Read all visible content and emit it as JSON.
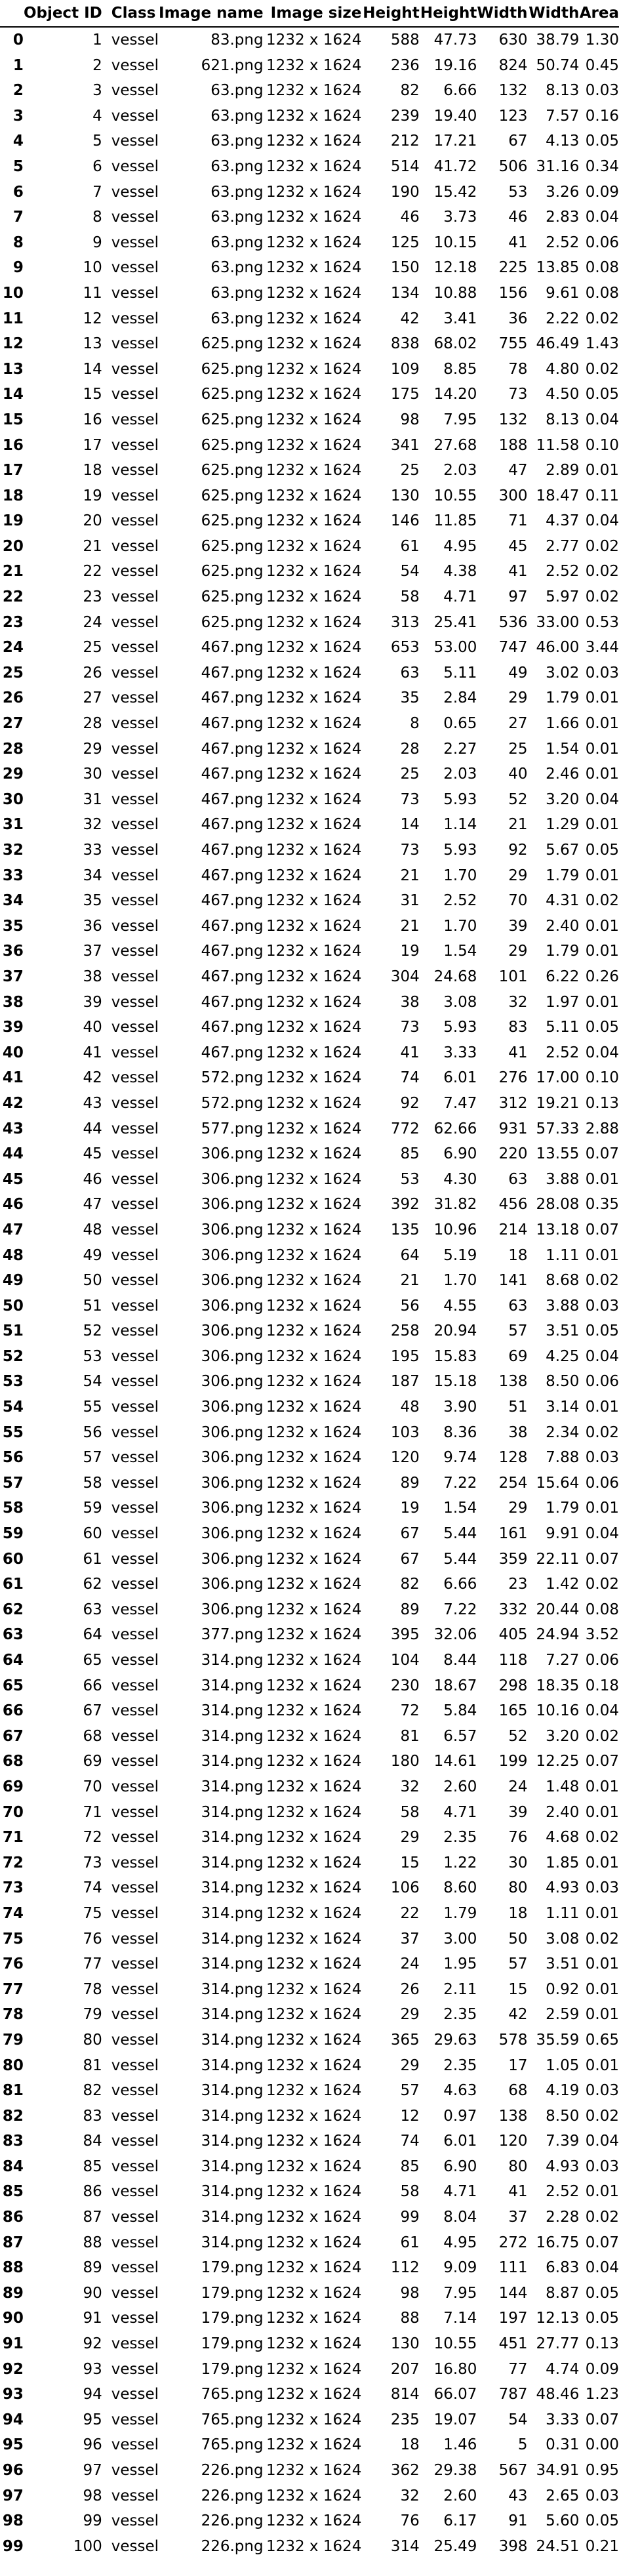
{
  "table": {
    "columns": [
      "",
      "Object ID",
      "Class",
      "Image name",
      "Image size",
      "Height",
      "Height",
      "Width",
      "Width",
      "Area"
    ],
    "rows": [
      [
        0,
        1,
        "vessel",
        "83.png",
        "1232 x 1624",
        "588",
        "47.73",
        "630",
        "38.79",
        "1.30"
      ],
      [
        1,
        2,
        "vessel",
        "621.png",
        "1232 x 1624",
        "236",
        "19.16",
        "824",
        "50.74",
        "0.45"
      ],
      [
        2,
        3,
        "vessel",
        "63.png",
        "1232 x 1624",
        "82",
        "6.66",
        "132",
        "8.13",
        "0.03"
      ],
      [
        3,
        4,
        "vessel",
        "63.png",
        "1232 x 1624",
        "239",
        "19.40",
        "123",
        "7.57",
        "0.16"
      ],
      [
        4,
        5,
        "vessel",
        "63.png",
        "1232 x 1624",
        "212",
        "17.21",
        "67",
        "4.13",
        "0.05"
      ],
      [
        5,
        6,
        "vessel",
        "63.png",
        "1232 x 1624",
        "514",
        "41.72",
        "506",
        "31.16",
        "0.34"
      ],
      [
        6,
        7,
        "vessel",
        "63.png",
        "1232 x 1624",
        "190",
        "15.42",
        "53",
        "3.26",
        "0.09"
      ],
      [
        7,
        8,
        "vessel",
        "63.png",
        "1232 x 1624",
        "46",
        "3.73",
        "46",
        "2.83",
        "0.04"
      ],
      [
        8,
        9,
        "vessel",
        "63.png",
        "1232 x 1624",
        "125",
        "10.15",
        "41",
        "2.52",
        "0.06"
      ],
      [
        9,
        10,
        "vessel",
        "63.png",
        "1232 x 1624",
        "150",
        "12.18",
        "225",
        "13.85",
        "0.08"
      ],
      [
        10,
        11,
        "vessel",
        "63.png",
        "1232 x 1624",
        "134",
        "10.88",
        "156",
        "9.61",
        "0.08"
      ],
      [
        11,
        12,
        "vessel",
        "63.png",
        "1232 x 1624",
        "42",
        "3.41",
        "36",
        "2.22",
        "0.02"
      ],
      [
        12,
        13,
        "vessel",
        "625.png",
        "1232 x 1624",
        "838",
        "68.02",
        "755",
        "46.49",
        "1.43"
      ],
      [
        13,
        14,
        "vessel",
        "625.png",
        "1232 x 1624",
        "109",
        "8.85",
        "78",
        "4.80",
        "0.02"
      ],
      [
        14,
        15,
        "vessel",
        "625.png",
        "1232 x 1624",
        "175",
        "14.20",
        "73",
        "4.50",
        "0.05"
      ],
      [
        15,
        16,
        "vessel",
        "625.png",
        "1232 x 1624",
        "98",
        "7.95",
        "132",
        "8.13",
        "0.04"
      ],
      [
        16,
        17,
        "vessel",
        "625.png",
        "1232 x 1624",
        "341",
        "27.68",
        "188",
        "11.58",
        "0.10"
      ],
      [
        17,
        18,
        "vessel",
        "625.png",
        "1232 x 1624",
        "25",
        "2.03",
        "47",
        "2.89",
        "0.01"
      ],
      [
        18,
        19,
        "vessel",
        "625.png",
        "1232 x 1624",
        "130",
        "10.55",
        "300",
        "18.47",
        "0.11"
      ],
      [
        19,
        20,
        "vessel",
        "625.png",
        "1232 x 1624",
        "146",
        "11.85",
        "71",
        "4.37",
        "0.04"
      ],
      [
        20,
        21,
        "vessel",
        "625.png",
        "1232 x 1624",
        "61",
        "4.95",
        "45",
        "2.77",
        "0.02"
      ],
      [
        21,
        22,
        "vessel",
        "625.png",
        "1232 x 1624",
        "54",
        "4.38",
        "41",
        "2.52",
        "0.02"
      ],
      [
        22,
        23,
        "vessel",
        "625.png",
        "1232 x 1624",
        "58",
        "4.71",
        "97",
        "5.97",
        "0.02"
      ],
      [
        23,
        24,
        "vessel",
        "625.png",
        "1232 x 1624",
        "313",
        "25.41",
        "536",
        "33.00",
        "0.53"
      ],
      [
        24,
        25,
        "vessel",
        "467.png",
        "1232 x 1624",
        "653",
        "53.00",
        "747",
        "46.00",
        "3.44"
      ],
      [
        25,
        26,
        "vessel",
        "467.png",
        "1232 x 1624",
        "63",
        "5.11",
        "49",
        "3.02",
        "0.03"
      ],
      [
        26,
        27,
        "vessel",
        "467.png",
        "1232 x 1624",
        "35",
        "2.84",
        "29",
        "1.79",
        "0.01"
      ],
      [
        27,
        28,
        "vessel",
        "467.png",
        "1232 x 1624",
        "8",
        "0.65",
        "27",
        "1.66",
        "0.01"
      ],
      [
        28,
        29,
        "vessel",
        "467.png",
        "1232 x 1624",
        "28",
        "2.27",
        "25",
        "1.54",
        "0.01"
      ],
      [
        29,
        30,
        "vessel",
        "467.png",
        "1232 x 1624",
        "25",
        "2.03",
        "40",
        "2.46",
        "0.01"
      ],
      [
        30,
        31,
        "vessel",
        "467.png",
        "1232 x 1624",
        "73",
        "5.93",
        "52",
        "3.20",
        "0.04"
      ],
      [
        31,
        32,
        "vessel",
        "467.png",
        "1232 x 1624",
        "14",
        "1.14",
        "21",
        "1.29",
        "0.01"
      ],
      [
        32,
        33,
        "vessel",
        "467.png",
        "1232 x 1624",
        "73",
        "5.93",
        "92",
        "5.67",
        "0.05"
      ],
      [
        33,
        34,
        "vessel",
        "467.png",
        "1232 x 1624",
        "21",
        "1.70",
        "29",
        "1.79",
        "0.01"
      ],
      [
        34,
        35,
        "vessel",
        "467.png",
        "1232 x 1624",
        "31",
        "2.52",
        "70",
        "4.31",
        "0.02"
      ],
      [
        35,
        36,
        "vessel",
        "467.png",
        "1232 x 1624",
        "21",
        "1.70",
        "39",
        "2.40",
        "0.01"
      ],
      [
        36,
        37,
        "vessel",
        "467.png",
        "1232 x 1624",
        "19",
        "1.54",
        "29",
        "1.79",
        "0.01"
      ],
      [
        37,
        38,
        "vessel",
        "467.png",
        "1232 x 1624",
        "304",
        "24.68",
        "101",
        "6.22",
        "0.26"
      ],
      [
        38,
        39,
        "vessel",
        "467.png",
        "1232 x 1624",
        "38",
        "3.08",
        "32",
        "1.97",
        "0.01"
      ],
      [
        39,
        40,
        "vessel",
        "467.png",
        "1232 x 1624",
        "73",
        "5.93",
        "83",
        "5.11",
        "0.05"
      ],
      [
        40,
        41,
        "vessel",
        "467.png",
        "1232 x 1624",
        "41",
        "3.33",
        "41",
        "2.52",
        "0.04"
      ],
      [
        41,
        42,
        "vessel",
        "572.png",
        "1232 x 1624",
        "74",
        "6.01",
        "276",
        "17.00",
        "0.10"
      ],
      [
        42,
        43,
        "vessel",
        "572.png",
        "1232 x 1624",
        "92",
        "7.47",
        "312",
        "19.21",
        "0.13"
      ],
      [
        43,
        44,
        "vessel",
        "577.png",
        "1232 x 1624",
        "772",
        "62.66",
        "931",
        "57.33",
        "2.88"
      ],
      [
        44,
        45,
        "vessel",
        "306.png",
        "1232 x 1624",
        "85",
        "6.90",
        "220",
        "13.55",
        "0.07"
      ],
      [
        45,
        46,
        "vessel",
        "306.png",
        "1232 x 1624",
        "53",
        "4.30",
        "63",
        "3.88",
        "0.01"
      ],
      [
        46,
        47,
        "vessel",
        "306.png",
        "1232 x 1624",
        "392",
        "31.82",
        "456",
        "28.08",
        "0.35"
      ],
      [
        47,
        48,
        "vessel",
        "306.png",
        "1232 x 1624",
        "135",
        "10.96",
        "214",
        "13.18",
        "0.07"
      ],
      [
        48,
        49,
        "vessel",
        "306.png",
        "1232 x 1624",
        "64",
        "5.19",
        "18",
        "1.11",
        "0.01"
      ],
      [
        49,
        50,
        "vessel",
        "306.png",
        "1232 x 1624",
        "21",
        "1.70",
        "141",
        "8.68",
        "0.02"
      ],
      [
        50,
        51,
        "vessel",
        "306.png",
        "1232 x 1624",
        "56",
        "4.55",
        "63",
        "3.88",
        "0.03"
      ],
      [
        51,
        52,
        "vessel",
        "306.png",
        "1232 x 1624",
        "258",
        "20.94",
        "57",
        "3.51",
        "0.05"
      ],
      [
        52,
        53,
        "vessel",
        "306.png",
        "1232 x 1624",
        "195",
        "15.83",
        "69",
        "4.25",
        "0.04"
      ],
      [
        53,
        54,
        "vessel",
        "306.png",
        "1232 x 1624",
        "187",
        "15.18",
        "138",
        "8.50",
        "0.06"
      ],
      [
        54,
        55,
        "vessel",
        "306.png",
        "1232 x 1624",
        "48",
        "3.90",
        "51",
        "3.14",
        "0.01"
      ],
      [
        55,
        56,
        "vessel",
        "306.png",
        "1232 x 1624",
        "103",
        "8.36",
        "38",
        "2.34",
        "0.02"
      ],
      [
        56,
        57,
        "vessel",
        "306.png",
        "1232 x 1624",
        "120",
        "9.74",
        "128",
        "7.88",
        "0.03"
      ],
      [
        57,
        58,
        "vessel",
        "306.png",
        "1232 x 1624",
        "89",
        "7.22",
        "254",
        "15.64",
        "0.06"
      ],
      [
        58,
        59,
        "vessel",
        "306.png",
        "1232 x 1624",
        "19",
        "1.54",
        "29",
        "1.79",
        "0.01"
      ],
      [
        59,
        60,
        "vessel",
        "306.png",
        "1232 x 1624",
        "67",
        "5.44",
        "161",
        "9.91",
        "0.04"
      ],
      [
        60,
        61,
        "vessel",
        "306.png",
        "1232 x 1624",
        "67",
        "5.44",
        "359",
        "22.11",
        "0.07"
      ],
      [
        61,
        62,
        "vessel",
        "306.png",
        "1232 x 1624",
        "82",
        "6.66",
        "23",
        "1.42",
        "0.02"
      ],
      [
        62,
        63,
        "vessel",
        "306.png",
        "1232 x 1624",
        "89",
        "7.22",
        "332",
        "20.44",
        "0.08"
      ],
      [
        63,
        64,
        "vessel",
        "377.png",
        "1232 x 1624",
        "395",
        "32.06",
        "405",
        "24.94",
        "3.52"
      ],
      [
        64,
        65,
        "vessel",
        "314.png",
        "1232 x 1624",
        "104",
        "8.44",
        "118",
        "7.27",
        "0.06"
      ],
      [
        65,
        66,
        "vessel",
        "314.png",
        "1232 x 1624",
        "230",
        "18.67",
        "298",
        "18.35",
        "0.18"
      ],
      [
        66,
        67,
        "vessel",
        "314.png",
        "1232 x 1624",
        "72",
        "5.84",
        "165",
        "10.16",
        "0.04"
      ],
      [
        67,
        68,
        "vessel",
        "314.png",
        "1232 x 1624",
        "81",
        "6.57",
        "52",
        "3.20",
        "0.02"
      ],
      [
        68,
        69,
        "vessel",
        "314.png",
        "1232 x 1624",
        "180",
        "14.61",
        "199",
        "12.25",
        "0.07"
      ],
      [
        69,
        70,
        "vessel",
        "314.png",
        "1232 x 1624",
        "32",
        "2.60",
        "24",
        "1.48",
        "0.01"
      ],
      [
        70,
        71,
        "vessel",
        "314.png",
        "1232 x 1624",
        "58",
        "4.71",
        "39",
        "2.40",
        "0.01"
      ],
      [
        71,
        72,
        "vessel",
        "314.png",
        "1232 x 1624",
        "29",
        "2.35",
        "76",
        "4.68",
        "0.02"
      ],
      [
        72,
        73,
        "vessel",
        "314.png",
        "1232 x 1624",
        "15",
        "1.22",
        "30",
        "1.85",
        "0.01"
      ],
      [
        73,
        74,
        "vessel",
        "314.png",
        "1232 x 1624",
        "106",
        "8.60",
        "80",
        "4.93",
        "0.03"
      ],
      [
        74,
        75,
        "vessel",
        "314.png",
        "1232 x 1624",
        "22",
        "1.79",
        "18",
        "1.11",
        "0.01"
      ],
      [
        75,
        76,
        "vessel",
        "314.png",
        "1232 x 1624",
        "37",
        "3.00",
        "50",
        "3.08",
        "0.02"
      ],
      [
        76,
        77,
        "vessel",
        "314.png",
        "1232 x 1624",
        "24",
        "1.95",
        "57",
        "3.51",
        "0.01"
      ],
      [
        77,
        78,
        "vessel",
        "314.png",
        "1232 x 1624",
        "26",
        "2.11",
        "15",
        "0.92",
        "0.01"
      ],
      [
        78,
        79,
        "vessel",
        "314.png",
        "1232 x 1624",
        "29",
        "2.35",
        "42",
        "2.59",
        "0.01"
      ],
      [
        79,
        80,
        "vessel",
        "314.png",
        "1232 x 1624",
        "365",
        "29.63",
        "578",
        "35.59",
        "0.65"
      ],
      [
        80,
        81,
        "vessel",
        "314.png",
        "1232 x 1624",
        "29",
        "2.35",
        "17",
        "1.05",
        "0.01"
      ],
      [
        81,
        82,
        "vessel",
        "314.png",
        "1232 x 1624",
        "57",
        "4.63",
        "68",
        "4.19",
        "0.03"
      ],
      [
        82,
        83,
        "vessel",
        "314.png",
        "1232 x 1624",
        "12",
        "0.97",
        "138",
        "8.50",
        "0.02"
      ],
      [
        83,
        84,
        "vessel",
        "314.png",
        "1232 x 1624",
        "74",
        "6.01",
        "120",
        "7.39",
        "0.04"
      ],
      [
        84,
        85,
        "vessel",
        "314.png",
        "1232 x 1624",
        "85",
        "6.90",
        "80",
        "4.93",
        "0.03"
      ],
      [
        85,
        86,
        "vessel",
        "314.png",
        "1232 x 1624",
        "58",
        "4.71",
        "41",
        "2.52",
        "0.01"
      ],
      [
        86,
        87,
        "vessel",
        "314.png",
        "1232 x 1624",
        "99",
        "8.04",
        "37",
        "2.28",
        "0.02"
      ],
      [
        87,
        88,
        "vessel",
        "314.png",
        "1232 x 1624",
        "61",
        "4.95",
        "272",
        "16.75",
        "0.07"
      ],
      [
        88,
        89,
        "vessel",
        "179.png",
        "1232 x 1624",
        "112",
        "9.09",
        "111",
        "6.83",
        "0.04"
      ],
      [
        89,
        90,
        "vessel",
        "179.png",
        "1232 x 1624",
        "98",
        "7.95",
        "144",
        "8.87",
        "0.05"
      ],
      [
        90,
        91,
        "vessel",
        "179.png",
        "1232 x 1624",
        "88",
        "7.14",
        "197",
        "12.13",
        "0.05"
      ],
      [
        91,
        92,
        "vessel",
        "179.png",
        "1232 x 1624",
        "130",
        "10.55",
        "451",
        "27.77",
        "0.13"
      ],
      [
        92,
        93,
        "vessel",
        "179.png",
        "1232 x 1624",
        "207",
        "16.80",
        "77",
        "4.74",
        "0.09"
      ],
      [
        93,
        94,
        "vessel",
        "765.png",
        "1232 x 1624",
        "814",
        "66.07",
        "787",
        "48.46",
        "1.23"
      ],
      [
        94,
        95,
        "vessel",
        "765.png",
        "1232 x 1624",
        "235",
        "19.07",
        "54",
        "3.33",
        "0.07"
      ],
      [
        95,
        96,
        "vessel",
        "765.png",
        "1232 x 1624",
        "18",
        "1.46",
        "5",
        "0.31",
        "0.00"
      ],
      [
        96,
        97,
        "vessel",
        "226.png",
        "1232 x 1624",
        "362",
        "29.38",
        "567",
        "34.91",
        "0.95"
      ],
      [
        97,
        98,
        "vessel",
        "226.png",
        "1232 x 1624",
        "32",
        "2.60",
        "43",
        "2.65",
        "0.03"
      ],
      [
        98,
        99,
        "vessel",
        "226.png",
        "1232 x 1624",
        "76",
        "6.17",
        "91",
        "5.60",
        "0.05"
      ],
      [
        99,
        100,
        "vessel",
        "226.png",
        "1232 x 1624",
        "314",
        "25.49",
        "398",
        "24.51",
        "0.21"
      ]
    ]
  }
}
